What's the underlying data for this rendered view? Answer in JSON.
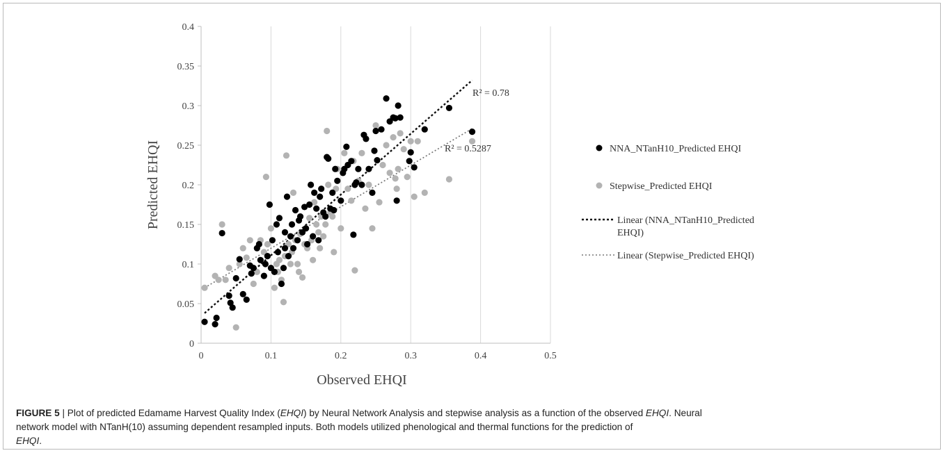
{
  "chart_data": {
    "type": "scatter",
    "xlabel": "Observed EHQI",
    "ylabel": "Predicted EHQI",
    "xlim": [
      0,
      0.5
    ],
    "ylim": [
      0,
      0.4
    ],
    "xticks": [
      "0",
      "0.1",
      "0.2",
      "0.3",
      "0.4",
      "0.5"
    ],
    "yticks": [
      "0",
      "0.05",
      "0.1",
      "0.15",
      "0.2",
      "0.25",
      "0.3",
      "0.35",
      "0.4"
    ],
    "grid": "vertical",
    "legend_position": "right",
    "series": [
      {
        "name": "NNA_NTanH10_Predicted EHQI",
        "color": "#000000",
        "points": [
          [
            0.005,
            0.027
          ],
          [
            0.02,
            0.024
          ],
          [
            0.022,
            0.032
          ],
          [
            0.03,
            0.139
          ],
          [
            0.04,
            0.06
          ],
          [
            0.042,
            0.051
          ],
          [
            0.045,
            0.045
          ],
          [
            0.05,
            0.082
          ],
          [
            0.055,
            0.106
          ],
          [
            0.06,
            0.062
          ],
          [
            0.065,
            0.055
          ],
          [
            0.07,
            0.098
          ],
          [
            0.072,
            0.088
          ],
          [
            0.075,
            0.095
          ],
          [
            0.08,
            0.12
          ],
          [
            0.083,
            0.125
          ],
          [
            0.085,
            0.105
          ],
          [
            0.09,
            0.085
          ],
          [
            0.092,
            0.1
          ],
          [
            0.095,
            0.11
          ],
          [
            0.098,
            0.175
          ],
          [
            0.1,
            0.095
          ],
          [
            0.102,
            0.13
          ],
          [
            0.105,
            0.09
          ],
          [
            0.108,
            0.15
          ],
          [
            0.11,
            0.115
          ],
          [
            0.112,
            0.158
          ],
          [
            0.115,
            0.075
          ],
          [
            0.118,
            0.095
          ],
          [
            0.12,
            0.12
          ],
          [
            0.12,
            0.14
          ],
          [
            0.123,
            0.185
          ],
          [
            0.125,
            0.11
          ],
          [
            0.128,
            0.135
          ],
          [
            0.13,
            0.15
          ],
          [
            0.132,
            0.12
          ],
          [
            0.135,
            0.168
          ],
          [
            0.138,
            0.13
          ],
          [
            0.14,
            0.155
          ],
          [
            0.142,
            0.16
          ],
          [
            0.145,
            0.14
          ],
          [
            0.148,
            0.172
          ],
          [
            0.15,
            0.145
          ],
          [
            0.152,
            0.125
          ],
          [
            0.155,
            0.175
          ],
          [
            0.157,
            0.2
          ],
          [
            0.16,
            0.135
          ],
          [
            0.162,
            0.19
          ],
          [
            0.165,
            0.17
          ],
          [
            0.168,
            0.13
          ],
          [
            0.17,
            0.185
          ],
          [
            0.172,
            0.195
          ],
          [
            0.175,
            0.165
          ],
          [
            0.178,
            0.16
          ],
          [
            0.18,
            0.235
          ],
          [
            0.182,
            0.233
          ],
          [
            0.185,
            0.17
          ],
          [
            0.188,
            0.19
          ],
          [
            0.19,
            0.168
          ],
          [
            0.192,
            0.22
          ],
          [
            0.195,
            0.205
          ],
          [
            0.2,
            0.18
          ],
          [
            0.203,
            0.215
          ],
          [
            0.205,
            0.22
          ],
          [
            0.208,
            0.248
          ],
          [
            0.21,
            0.225
          ],
          [
            0.215,
            0.23
          ],
          [
            0.218,
            0.137
          ],
          [
            0.22,
            0.2
          ],
          [
            0.222,
            0.203
          ],
          [
            0.225,
            0.22
          ],
          [
            0.23,
            0.2
          ],
          [
            0.233,
            0.263
          ],
          [
            0.236,
            0.258
          ],
          [
            0.24,
            0.22
          ],
          [
            0.245,
            0.19
          ],
          [
            0.248,
            0.243
          ],
          [
            0.25,
            0.268
          ],
          [
            0.252,
            0.231
          ],
          [
            0.258,
            0.27
          ],
          [
            0.265,
            0.309
          ],
          [
            0.27,
            0.28
          ],
          [
            0.275,
            0.285
          ],
          [
            0.278,
            0.284
          ],
          [
            0.28,
            0.18
          ],
          [
            0.282,
            0.3
          ],
          [
            0.285,
            0.285
          ],
          [
            0.298,
            0.23
          ],
          [
            0.3,
            0.241
          ],
          [
            0.305,
            0.222
          ],
          [
            0.32,
            0.27
          ],
          [
            0.355,
            0.297
          ],
          [
            0.388,
            0.267
          ]
        ]
      },
      {
        "name": "Stepwise_Predicted EHQI",
        "color": "#b3b3b3",
        "points": [
          [
            0.005,
            0.07
          ],
          [
            0.02,
            0.085
          ],
          [
            0.025,
            0.08
          ],
          [
            0.03,
            0.15
          ],
          [
            0.035,
            0.08
          ],
          [
            0.04,
            0.095
          ],
          [
            0.05,
            0.02
          ],
          [
            0.055,
            0.1
          ],
          [
            0.06,
            0.12
          ],
          [
            0.065,
            0.108
          ],
          [
            0.07,
            0.13
          ],
          [
            0.075,
            0.075
          ],
          [
            0.08,
            0.09
          ],
          [
            0.085,
            0.13
          ],
          [
            0.09,
            0.115
          ],
          [
            0.093,
            0.21
          ],
          [
            0.095,
            0.125
          ],
          [
            0.1,
            0.145
          ],
          [
            0.105,
            0.07
          ],
          [
            0.108,
            0.1
          ],
          [
            0.11,
            0.09
          ],
          [
            0.112,
            0.105
          ],
          [
            0.115,
            0.08
          ],
          [
            0.118,
            0.052
          ],
          [
            0.12,
            0.11
          ],
          [
            0.122,
            0.237
          ],
          [
            0.125,
            0.125
          ],
          [
            0.128,
            0.1
          ],
          [
            0.13,
            0.115
          ],
          [
            0.132,
            0.19
          ],
          [
            0.135,
            0.13
          ],
          [
            0.138,
            0.1
          ],
          [
            0.14,
            0.09
          ],
          [
            0.142,
            0.138
          ],
          [
            0.145,
            0.083
          ],
          [
            0.148,
            0.125
          ],
          [
            0.15,
            0.145
          ],
          [
            0.152,
            0.12
          ],
          [
            0.155,
            0.158
          ],
          [
            0.158,
            0.13
          ],
          [
            0.16,
            0.105
          ],
          [
            0.162,
            0.178
          ],
          [
            0.165,
            0.15
          ],
          [
            0.168,
            0.14
          ],
          [
            0.17,
            0.12
          ],
          [
            0.172,
            0.16
          ],
          [
            0.175,
            0.135
          ],
          [
            0.178,
            0.15
          ],
          [
            0.18,
            0.268
          ],
          [
            0.182,
            0.2
          ],
          [
            0.185,
            0.165
          ],
          [
            0.188,
            0.16
          ],
          [
            0.19,
            0.115
          ],
          [
            0.193,
            0.195
          ],
          [
            0.195,
            0.22
          ],
          [
            0.2,
            0.145
          ],
          [
            0.205,
            0.24
          ],
          [
            0.21,
            0.195
          ],
          [
            0.215,
            0.18
          ],
          [
            0.218,
            0.23
          ],
          [
            0.22,
            0.092
          ],
          [
            0.225,
            0.205
          ],
          [
            0.23,
            0.24
          ],
          [
            0.235,
            0.17
          ],
          [
            0.24,
            0.2
          ],
          [
            0.245,
            0.145
          ],
          [
            0.25,
            0.275
          ],
          [
            0.255,
            0.178
          ],
          [
            0.26,
            0.225
          ],
          [
            0.265,
            0.25
          ],
          [
            0.27,
            0.215
          ],
          [
            0.275,
            0.26
          ],
          [
            0.278,
            0.208
          ],
          [
            0.28,
            0.195
          ],
          [
            0.282,
            0.22
          ],
          [
            0.285,
            0.265
          ],
          [
            0.29,
            0.245
          ],
          [
            0.295,
            0.21
          ],
          [
            0.3,
            0.255
          ],
          [
            0.305,
            0.185
          ],
          [
            0.31,
            0.255
          ],
          [
            0.32,
            0.19
          ],
          [
            0.355,
            0.207
          ],
          [
            0.388,
            0.255
          ]
        ]
      }
    ],
    "trendlines": [
      {
        "name": "Linear (NNA_NTanH10_Predicted EHQI)",
        "color": "#111111",
        "dash": "3,3",
        "x": [
          0.005,
          0.388
        ],
        "y": [
          0.038,
          0.332
        ],
        "r2_label": "R² = 0.78"
      },
      {
        "name": "Linear (Stepwise_Predicted EHQI)",
        "color": "#777777",
        "dash": "2,3",
        "x": [
          0.005,
          0.388
        ],
        "y": [
          0.07,
          0.271
        ],
        "r2_label": "R² = 0.5287"
      }
    ]
  },
  "legend": {
    "items": [
      "NNA_NTanH10_Predicted EHQI",
      "Stepwise_Predicted EHQI",
      "Linear (NNA_NTanH10_Predicted",
      "EHQI)",
      "Linear (Stepwise_Predicted EHQI)"
    ]
  },
  "caption": {
    "label": "FIGURE 5",
    "sep": " | ",
    "line1_a": "Plot of predicted Edamame Harvest Quality Index (",
    "line1_b": "EHQI",
    "line1_c": ") by Neural Network Analysis and stepwise analysis as a function of the observed ",
    "line1_d": "EHQI",
    "line1_e": ". Neural",
    "line2": "network model with NTanH(10) assuming dependent resampled inputs. Both models utilized phenological and thermal functions for the prediction of ",
    "line3_a": "EHQI",
    "line3_b": "."
  }
}
